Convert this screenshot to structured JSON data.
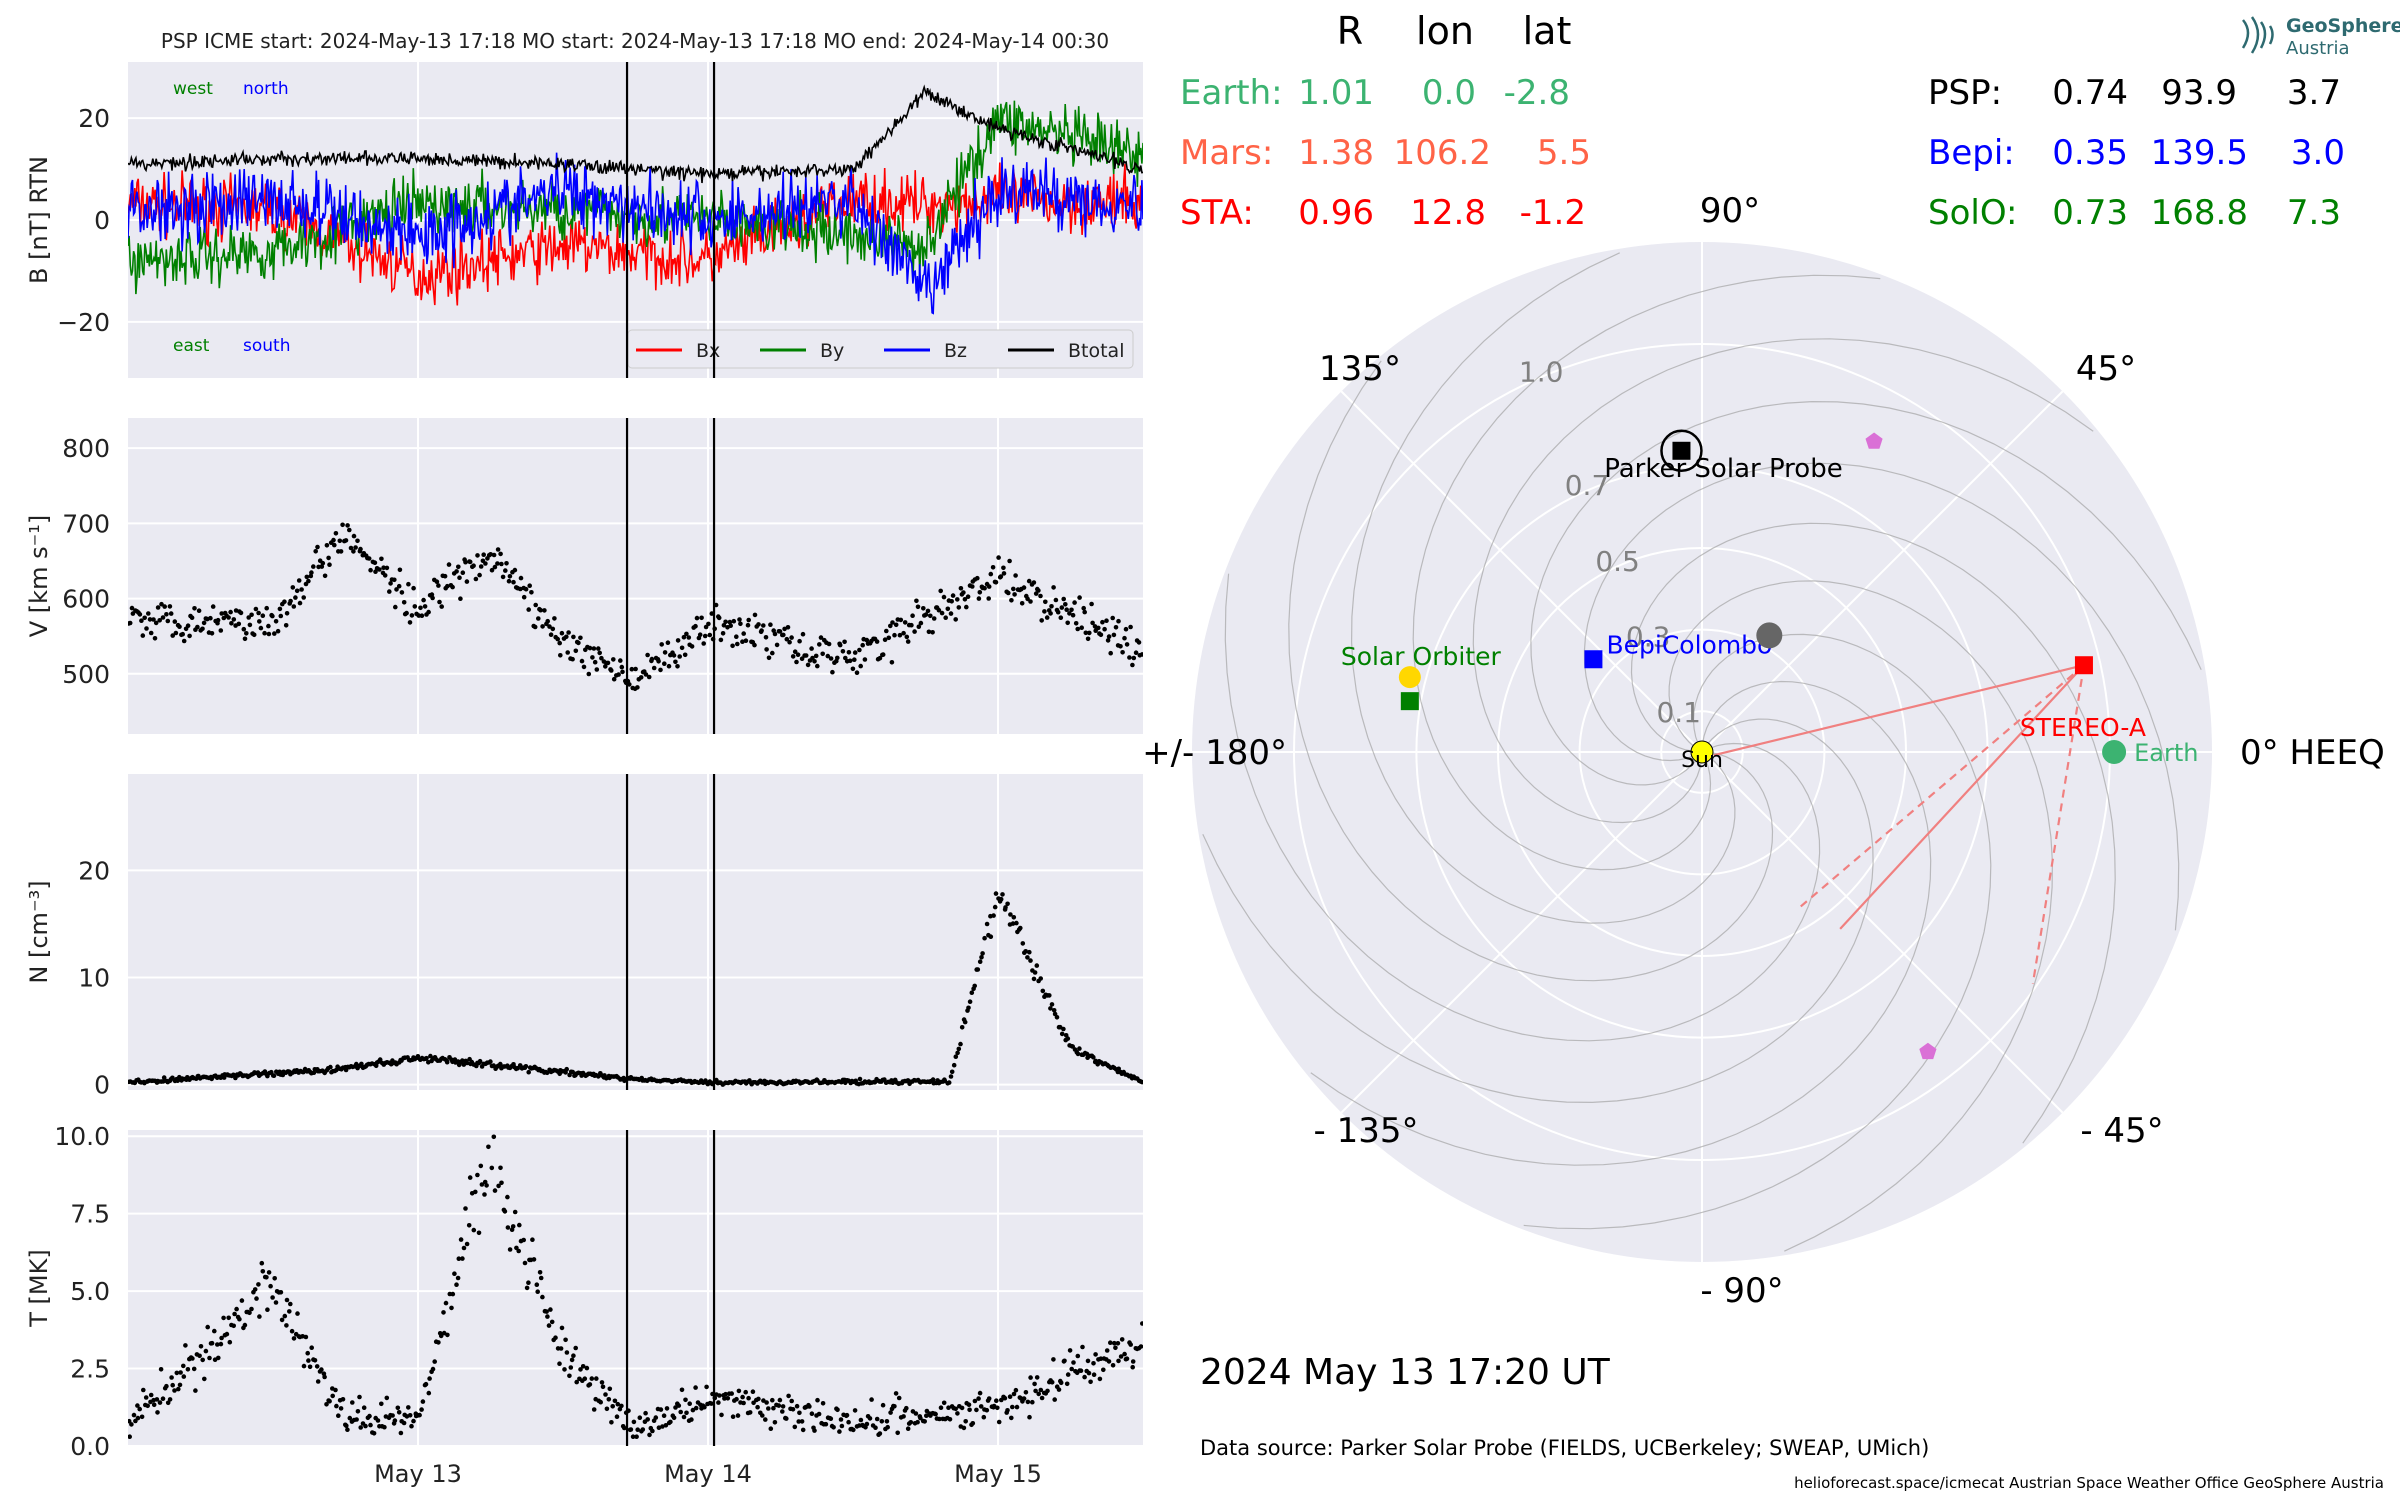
{
  "header": {
    "title": "PSP    ICME start: 2024-May-13 17:18   MO start: 2024-May-13 17:18   MO end: 2024-May-14 00:30",
    "logo_line1": "GeoSphere",
    "logo_line2": "Austria"
  },
  "colors": {
    "panel_bg": "#eaeaf2",
    "bx": "#ff0000",
    "by": "#008000",
    "bz": "#0000ff",
    "btotal": "#000000",
    "earth": "#3cb371",
    "mars": "#ff6347",
    "sta": "#ff0000",
    "bepi": "#0000ff",
    "solo": "#008000",
    "planet_marker": "#da70d6"
  },
  "position_table": {
    "header": [
      "R",
      "lon",
      "lat"
    ],
    "left": [
      {
        "name": "Earth:",
        "r": "1.01",
        "lon": "0.0",
        "lat": "-2.8",
        "color": "#3cb371"
      },
      {
        "name": "Mars:",
        "r": "1.38",
        "lon": "106.2",
        "lat": "5.5",
        "color": "#ff6347"
      },
      {
        "name": "STA:",
        "r": "0.96",
        "lon": "12.8",
        "lat": "-1.2",
        "color": "#ff0000"
      }
    ],
    "right": [
      {
        "name": "PSP:",
        "r": "0.74",
        "lon": "93.9",
        "lat": "3.7",
        "color": "#000000"
      },
      {
        "name": "Bepi:",
        "r": "0.35",
        "lon": "139.5",
        "lat": "3.0",
        "color": "#0000ff"
      },
      {
        "name": "SolO:",
        "r": "0.73",
        "lon": "168.8",
        "lat": "7.3",
        "color": "#008000"
      }
    ]
  },
  "footer": {
    "timestamp": "2024 May 13  17:20 UT",
    "data_source": "Data source: Parker Solar Probe (FIELDS, UCBerkeley; SWEAP, UMich)",
    "credits": "helioforecast.space/icmecat   Austrian Space Weather Office   GeoSphere Austria"
  },
  "chart_data": [
    {
      "type": "line",
      "ylabel": "B [nT] RTN",
      "ylim": [
        -31,
        31
      ],
      "yticks": [
        "20",
        "0",
        "−20"
      ],
      "corner_labels": {
        "top": [
          "west",
          "north"
        ],
        "bottom": [
          "east",
          "south"
        ]
      },
      "legend": [
        "Bx",
        "By",
        "Bz",
        "Btotal"
      ],
      "legend_position": "lower-right",
      "x": [
        "May 12 00:00",
        "May 12 12:00",
        "May 13 00:00",
        "May 13 12:00",
        "May 14 00:00",
        "May 14 12:00",
        "May 14 18:00",
        "May 15 00:00",
        "May 15 12:00"
      ],
      "series": [
        {
          "name": "Bx",
          "values": [
            3,
            2,
            -11,
            -5,
            -8,
            4,
            3,
            4,
            3
          ]
        },
        {
          "name": "By",
          "values": [
            -8,
            -6,
            3,
            2,
            0,
            -3,
            -5,
            20,
            12
          ]
        },
        {
          "name": "Bz",
          "values": [
            2,
            4,
            -3,
            6,
            0,
            4,
            -15,
            6,
            3
          ]
        },
        {
          "name": "Btotal",
          "values": [
            11,
            12,
            12,
            11,
            9,
            10,
            25,
            18,
            10
          ]
        }
      ]
    },
    {
      "type": "scatter",
      "ylabel": "V [km s⁻¹]",
      "ylim": [
        420,
        840
      ],
      "yticks": [
        "800",
        "700",
        "600",
        "500"
      ],
      "x": [
        "May 12 00:00",
        "May 12 12:00",
        "May 12 18:00",
        "May 13 00:00",
        "May 13 06:00",
        "May 13 12:00",
        "May 13 18:00",
        "May 14 00:00",
        "May 14 12:00",
        "May 15 00:00",
        "May 15 12:00"
      ],
      "series": [
        {
          "name": "V",
          "values": [
            575,
            570,
            690,
            580,
            660,
            540,
            490,
            570,
            520,
            630,
            530
          ]
        }
      ]
    },
    {
      "type": "scatter",
      "ylabel": "N [cm⁻³]",
      "ylim": [
        -0.5,
        29
      ],
      "yticks": [
        "20",
        "10",
        "0"
      ],
      "x": [
        "May 12 00:00",
        "May 12 18:00",
        "May 13 00:00",
        "May 13 18:00",
        "May 14 00:00",
        "May 14 20:00",
        "May 15 00:00",
        "May 15 06:00",
        "May 15 12:00"
      ],
      "series": [
        {
          "name": "N",
          "values": [
            0.2,
            1.5,
            2.5,
            0.5,
            0.2,
            0.3,
            18,
            3.5,
            0.2
          ]
        }
      ]
    },
    {
      "type": "scatter",
      "ylabel": "T [MK]",
      "ylim": [
        0,
        10.2
      ],
      "yticks": [
        "10.0",
        "7.5",
        "5.0",
        "2.5",
        "0.0"
      ],
      "xticks": [
        "May 13",
        "May 14",
        "May 15"
      ],
      "x": [
        "May 12 00:00",
        "May 12 12:00",
        "May 12 18:00",
        "May 13 00:00",
        "May 13 06:00",
        "May 13 12:00",
        "May 13 18:00",
        "May 14 00:00",
        "May 14 12:00",
        "May 15 00:00",
        "May 15 12:00"
      ],
      "series": [
        {
          "name": "T",
          "values": [
            0.6,
            5.2,
            1.0,
            0.8,
            9.5,
            3.0,
            0.5,
            1.5,
            0.8,
            1.2,
            3.5
          ]
        }
      ]
    },
    {
      "type": "scatter",
      "coordinate_system": "polar",
      "r_ticks": [
        "0.1",
        "0.3",
        "0.5",
        "0.7",
        "1.0"
      ],
      "angle_labels": [
        "0° HEEQ",
        "45°",
        "90°",
        "135°",
        "+/- 180°",
        "- 135°",
        "- 90°",
        "- 45°"
      ],
      "bodies": [
        {
          "label": "Sun",
          "r": 0,
          "lon": 0,
          "color": "#ffff00"
        },
        {
          "label": "Parker Solar Probe",
          "r": 0.74,
          "lon": 93.9,
          "color": "#000000"
        },
        {
          "label": "BepiColombo",
          "r": 0.35,
          "lon": 139.5,
          "color": "#0000ff"
        },
        {
          "label": "Solar Orbiter",
          "r": 0.73,
          "lon": 168.8,
          "color": "#008000"
        },
        {
          "label": "STEREO-A",
          "r": 0.96,
          "lon": 12.8,
          "color": "#ff0000"
        },
        {
          "label": "Earth",
          "r": 1.01,
          "lon": 0.0,
          "color": "#3cb371"
        },
        {
          "label": "",
          "r": 0.33,
          "lon": 60,
          "color": "#666666"
        },
        {
          "label": "",
          "r": 0.87,
          "lon": 61,
          "color": "#da70d6"
        },
        {
          "label": "",
          "r": 0.92,
          "lon": -53,
          "color": "#da70d6"
        }
      ]
    }
  ]
}
